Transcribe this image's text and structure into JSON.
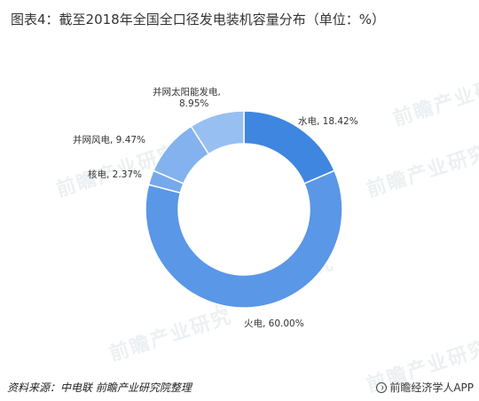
{
  "title": "图表4：截至2018年全国全口径发电装机容量分布（单位：%）",
  "chart_data": {
    "type": "pie",
    "donut": true,
    "slices": [
      {
        "name": "水电",
        "value": 18.42,
        "label": "水电, 18.42%",
        "color": "#3f86e0"
      },
      {
        "name": "火电",
        "value": 60.0,
        "label": "火电, 60.00%",
        "color": "#5a97e6"
      },
      {
        "name": "核电",
        "value": 2.37,
        "label": "核电, 2.37%",
        "color": "#76a9ec"
      },
      {
        "name": "并网风电",
        "value": 9.47,
        "label": "并网风电, 9.47%",
        "color": "#84b2ee"
      },
      {
        "name": "并网太阳能发电",
        "value": 8.95,
        "label_lines": [
          "并网太阳能发电,",
          "8.95%"
        ],
        "color": "#97bff2"
      }
    ]
  },
  "footer": {
    "source": "资料来源：中电联 前瞻产业研究院整理",
    "brand": "前瞻经济学人APP"
  },
  "watermark_text": "前瞻产业研究"
}
